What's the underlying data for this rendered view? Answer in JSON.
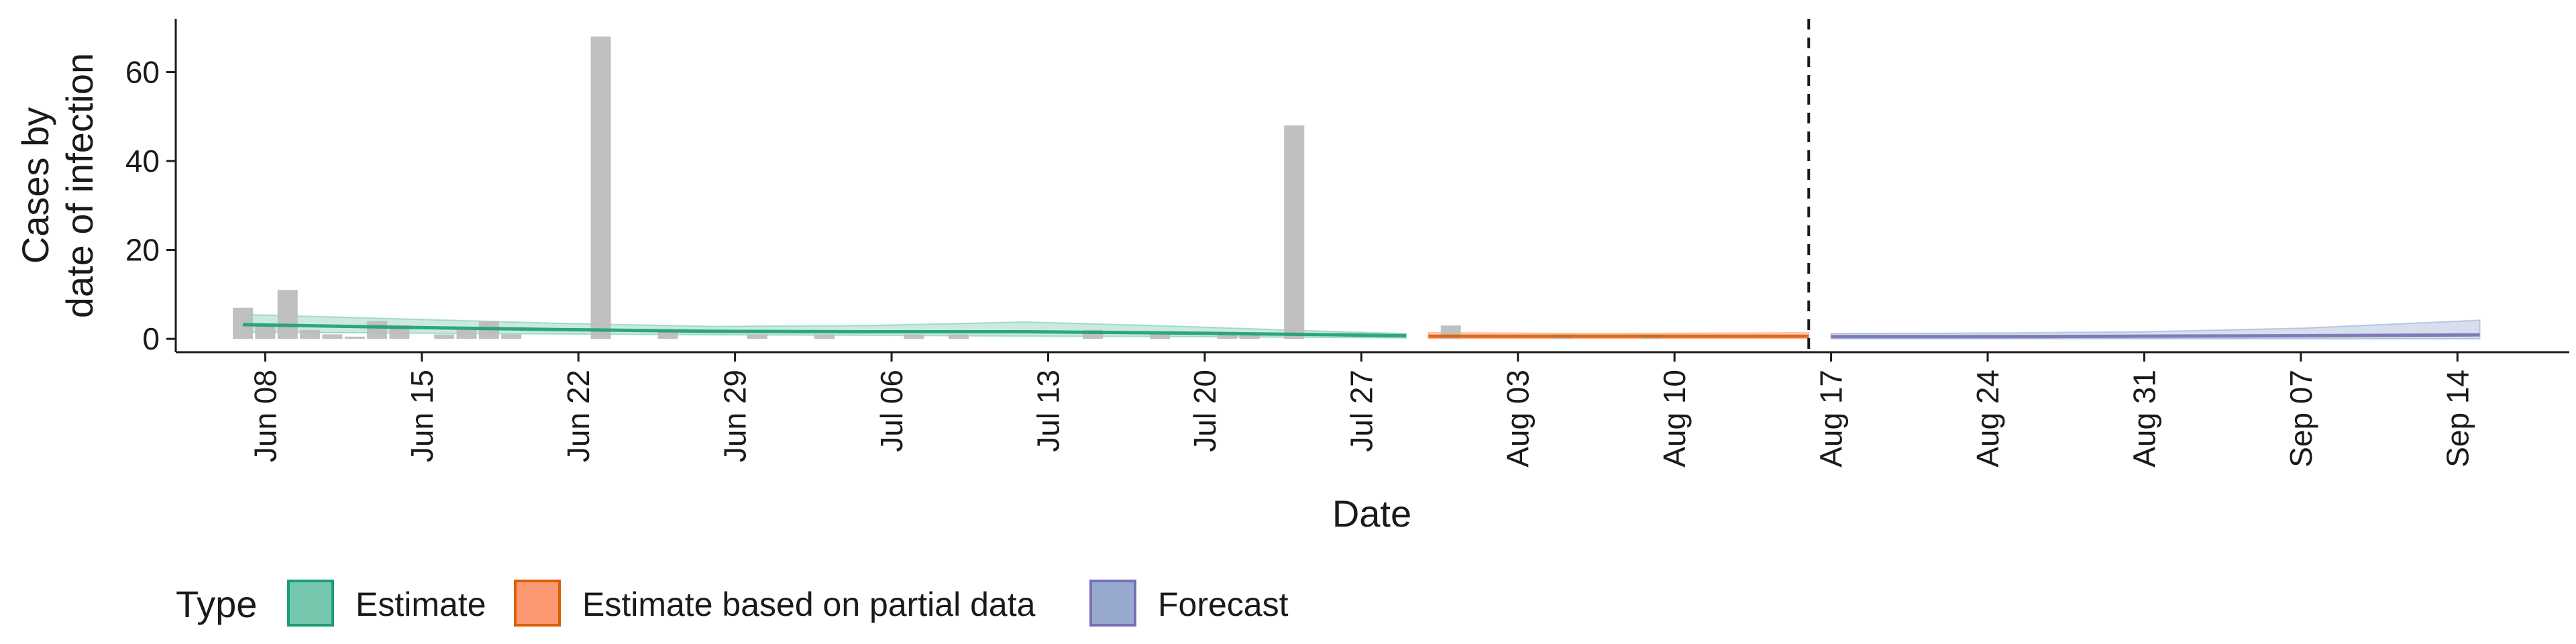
{
  "chart_data": {
    "type": "bar",
    "ylabel_lines": [
      "Cases by",
      "date of infection"
    ],
    "xlabel": "Date",
    "ylim": [
      -3,
      72
    ],
    "yticks": [
      0,
      20,
      40,
      60
    ],
    "xlim": [
      "2020-06-04",
      "2020-09-19"
    ],
    "xticks": [
      {
        "date": "2020-06-08",
        "label": "Jun 08"
      },
      {
        "date": "2020-06-15",
        "label": "Jun 15"
      },
      {
        "date": "2020-06-22",
        "label": "Jun 22"
      },
      {
        "date": "2020-06-29",
        "label": "Jun 29"
      },
      {
        "date": "2020-07-06",
        "label": "Jul 06"
      },
      {
        "date": "2020-07-13",
        "label": "Jul 13"
      },
      {
        "date": "2020-07-20",
        "label": "Jul 20"
      },
      {
        "date": "2020-07-27",
        "label": "Jul 27"
      },
      {
        "date": "2020-08-03",
        "label": "Aug 03"
      },
      {
        "date": "2020-08-10",
        "label": "Aug 10"
      },
      {
        "date": "2020-08-17",
        "label": "Aug 17"
      },
      {
        "date": "2020-08-24",
        "label": "Aug 24"
      },
      {
        "date": "2020-08-31",
        "label": "Aug 31"
      },
      {
        "date": "2020-09-07",
        "label": "Sep 07"
      },
      {
        "date": "2020-09-14",
        "label": "Sep 14"
      }
    ],
    "vline_date": "2020-08-16",
    "observed_cases": [
      {
        "date": "2020-06-07",
        "value": 7
      },
      {
        "date": "2020-06-08",
        "value": 3
      },
      {
        "date": "2020-06-09",
        "value": 11
      },
      {
        "date": "2020-06-10",
        "value": 2
      },
      {
        "date": "2020-06-11",
        "value": 1
      },
      {
        "date": "2020-06-12",
        "value": 0.5
      },
      {
        "date": "2020-06-13",
        "value": 4
      },
      {
        "date": "2020-06-14",
        "value": 3
      },
      {
        "date": "2020-06-16",
        "value": 1
      },
      {
        "date": "2020-06-17",
        "value": 2
      },
      {
        "date": "2020-06-18",
        "value": 4
      },
      {
        "date": "2020-06-19",
        "value": 1
      },
      {
        "date": "2020-06-23",
        "value": 68
      },
      {
        "date": "2020-06-26",
        "value": 2
      },
      {
        "date": "2020-06-30",
        "value": 1
      },
      {
        "date": "2020-07-03",
        "value": 1
      },
      {
        "date": "2020-07-07",
        "value": 1
      },
      {
        "date": "2020-07-09",
        "value": 1
      },
      {
        "date": "2020-07-15",
        "value": 2
      },
      {
        "date": "2020-07-18",
        "value": 1
      },
      {
        "date": "2020-07-21",
        "value": 1
      },
      {
        "date": "2020-07-22",
        "value": 1
      },
      {
        "date": "2020-07-24",
        "value": 48
      },
      {
        "date": "2020-07-31",
        "value": 3
      },
      {
        "date": "2020-08-05",
        "value": 1
      },
      {
        "date": "2020-08-09",
        "value": 1
      }
    ],
    "series": [
      {
        "name": "Estimate",
        "color": "#1b9e77",
        "fill": "#66c2a5",
        "dates": [
          "2020-06-07",
          "2020-06-14",
          "2020-06-21",
          "2020-06-28",
          "2020-07-05",
          "2020-07-12",
          "2020-07-19",
          "2020-07-26",
          "2020-07-29"
        ],
        "median": [
          3.2,
          2.6,
          2.1,
          1.7,
          1.6,
          1.6,
          1.3,
          0.9,
          0.7
        ],
        "lower": [
          1.5,
          1.3,
          1.1,
          0.9,
          0.8,
          0.6,
          0.5,
          0.3,
          0.2
        ],
        "upper": [
          5.5,
          4.5,
          3.5,
          2.8,
          3.0,
          3.8,
          2.8,
          1.6,
          1.2
        ]
      },
      {
        "name": "Estimate based on partial data",
        "color": "#d95f02",
        "fill": "#fc8d62",
        "dates": [
          "2020-07-30",
          "2020-08-06",
          "2020-08-13",
          "2020-08-16"
        ],
        "median": [
          0.6,
          0.6,
          0.6,
          0.6
        ],
        "lower": [
          0.1,
          0.1,
          0.1,
          0.1
        ],
        "upper": [
          1.4,
          1.2,
          1.3,
          1.4
        ]
      },
      {
        "name": "Forecast",
        "color": "#7570b3",
        "fill": "#8da0cb",
        "dates": [
          "2020-08-17",
          "2020-08-24",
          "2020-08-31",
          "2020-09-07",
          "2020-09-15"
        ],
        "median": [
          0.5,
          0.5,
          0.6,
          0.7,
          0.9
        ],
        "lower": [
          0.0,
          0.0,
          0.0,
          0.0,
          0.0
        ],
        "upper": [
          1.2,
          1.3,
          1.6,
          2.4,
          4.2
        ]
      }
    ],
    "legend": {
      "title": "Type",
      "placement": "bottom",
      "items": [
        "Estimate",
        "Estimate based on partial data",
        "Forecast"
      ]
    },
    "bar_color": "#bdbdbd",
    "grid": false
  }
}
